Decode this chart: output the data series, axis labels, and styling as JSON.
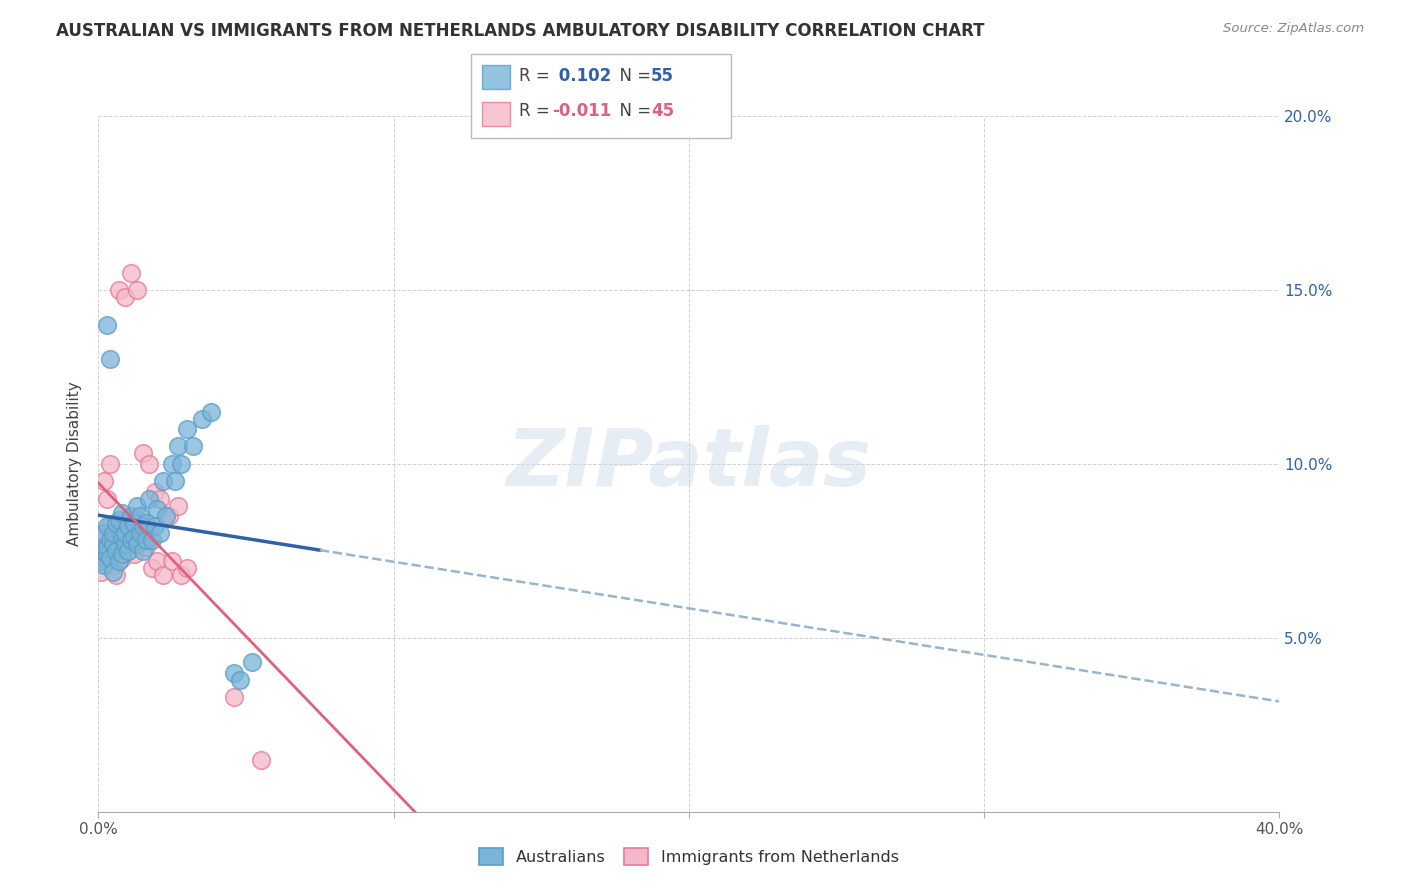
{
  "title": "AUSTRALIAN VS IMMIGRANTS FROM NETHERLANDS AMBULATORY DISABILITY CORRELATION CHART",
  "source": "Source: ZipAtlas.com",
  "ylabel": "Ambulatory Disability",
  "xlim": [
    0.0,
    0.4
  ],
  "ylim": [
    0.0,
    0.2
  ],
  "xticks": [
    0.0,
    0.1,
    0.2,
    0.3,
    0.4
  ],
  "yticks": [
    0.0,
    0.05,
    0.1,
    0.15,
    0.2
  ],
  "xtick_labels": [
    "0.0%",
    "",
    "",
    "",
    "40.0%"
  ],
  "ytick_labels": [
    "",
    "5.0%",
    "10.0%",
    "15.0%",
    "20.0%"
  ],
  "watermark": "ZIPatlas",
  "legend1_label": "Australians",
  "legend2_label": "Immigrants from Netherlands",
  "series1_color": "#7ab4d8",
  "series1_edge": "#5a9ec8",
  "series1_line": "#3060a8",
  "series2_color": "#f5b8c8",
  "series2_edge": "#e87898",
  "series2_line": "#e06080",
  "legend_r1": "0.102",
  "legend_n1": "55",
  "legend_r2": "-0.011",
  "legend_n2": "45",
  "aus_x": [
    0.001,
    0.001,
    0.002,
    0.002,
    0.003,
    0.003,
    0.003,
    0.004,
    0.004,
    0.005,
    0.005,
    0.005,
    0.006,
    0.006,
    0.007,
    0.007,
    0.008,
    0.008,
    0.008,
    0.009,
    0.009,
    0.01,
    0.01,
    0.011,
    0.011,
    0.012,
    0.012,
    0.013,
    0.013,
    0.014,
    0.014,
    0.015,
    0.015,
    0.016,
    0.016,
    0.017,
    0.018,
    0.019,
    0.02,
    0.021,
    0.022,
    0.023,
    0.025,
    0.026,
    0.027,
    0.028,
    0.03,
    0.032,
    0.035,
    0.038,
    0.003,
    0.004,
    0.046,
    0.048,
    0.052
  ],
  "aus_y": [
    0.075,
    0.072,
    0.08,
    0.071,
    0.074,
    0.076,
    0.082,
    0.073,
    0.078,
    0.077,
    0.08,
    0.069,
    0.083,
    0.075,
    0.072,
    0.084,
    0.079,
    0.074,
    0.086,
    0.077,
    0.08,
    0.075,
    0.082,
    0.078,
    0.085,
    0.079,
    0.083,
    0.088,
    0.077,
    0.08,
    0.085,
    0.075,
    0.082,
    0.083,
    0.078,
    0.09,
    0.078,
    0.082,
    0.087,
    0.08,
    0.095,
    0.085,
    0.1,
    0.095,
    0.105,
    0.1,
    0.11,
    0.105,
    0.113,
    0.115,
    0.14,
    0.13,
    0.04,
    0.038,
    0.043
  ],
  "neth_x": [
    0.001,
    0.001,
    0.002,
    0.002,
    0.003,
    0.003,
    0.004,
    0.004,
    0.005,
    0.005,
    0.006,
    0.006,
    0.007,
    0.007,
    0.008,
    0.008,
    0.009,
    0.01,
    0.011,
    0.012,
    0.013,
    0.014,
    0.015,
    0.016,
    0.018,
    0.02,
    0.022,
    0.025,
    0.028,
    0.03,
    0.002,
    0.003,
    0.004,
    0.046,
    0.055,
    0.007,
    0.009,
    0.011,
    0.013,
    0.015,
    0.017,
    0.019,
    0.021,
    0.024,
    0.027
  ],
  "neth_y": [
    0.075,
    0.069,
    0.073,
    0.08,
    0.072,
    0.077,
    0.076,
    0.082,
    0.079,
    0.071,
    0.068,
    0.074,
    0.072,
    0.078,
    0.073,
    0.08,
    0.077,
    0.075,
    0.079,
    0.074,
    0.078,
    0.08,
    0.082,
    0.076,
    0.07,
    0.072,
    0.068,
    0.072,
    0.068,
    0.07,
    0.095,
    0.09,
    0.1,
    0.033,
    0.015,
    0.15,
    0.148,
    0.155,
    0.15,
    0.103,
    0.1,
    0.092,
    0.09,
    0.085,
    0.088
  ]
}
